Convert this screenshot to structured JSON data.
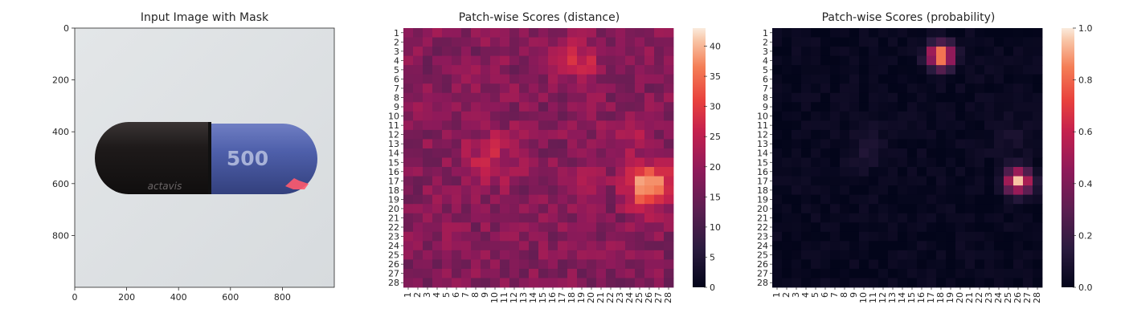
{
  "chart_data": [
    {
      "type": "image",
      "title": "Input Image with Mask",
      "x_ticks": [
        0,
        200,
        400,
        600,
        800
      ],
      "y_ticks": [
        0,
        200,
        400,
        600,
        800
      ],
      "xlim": [
        0,
        1000
      ],
      "ylim": [
        1000,
        0
      ],
      "image_content": {
        "background_color": "#dfe2e4",
        "capsule_left_color": "#1e1a1a",
        "capsule_right_color": "#4e5faa",
        "capsule_text": "500",
        "capsule_logo": "actavis",
        "mask_color": "#ff5a6e",
        "mask_region_center_xy": [
          880,
          595
        ]
      }
    },
    {
      "type": "heatmap",
      "title": "Patch-wise Scores (distance)",
      "grid_size": 28,
      "tick_labels": [
        "1",
        "2",
        "3",
        "4",
        "5",
        "6",
        "7",
        "8",
        "9",
        "10",
        "11",
        "12",
        "13",
        "14",
        "15",
        "16",
        "17",
        "18",
        "19",
        "20",
        "21",
        "22",
        "23",
        "24",
        "25",
        "26",
        "27",
        "28"
      ],
      "colormap": "rocket",
      "colorbar": {
        "min": 0,
        "max": 43,
        "ticks": [
          0,
          5,
          10,
          15,
          20,
          25,
          30,
          35,
          40
        ]
      },
      "baseline": 18,
      "noise_amplitude": 4,
      "hotspots": [
        {
          "row": 4,
          "col": 18.5,
          "peak": 10,
          "spread": 1.5
        },
        {
          "row": 14.5,
          "col": 9.5,
          "peak": 7,
          "spread": 2
        },
        {
          "row": 12.5,
          "col": 24,
          "peak": 5,
          "spread": 1.5
        },
        {
          "row": 17.5,
          "col": 26,
          "peak": 24,
          "spread": 1.6
        },
        {
          "row": 17.5,
          "col": 19,
          "peak": 4,
          "spread": 1.2
        }
      ]
    },
    {
      "type": "heatmap",
      "title": "Patch-wise Scores (probability)",
      "grid_size": 28,
      "tick_labels": [
        "1",
        "2",
        "3",
        "4",
        "5",
        "6",
        "7",
        "8",
        "9",
        "10",
        "11",
        "12",
        "13",
        "14",
        "15",
        "16",
        "17",
        "18",
        "19",
        "20",
        "21",
        "22",
        "23",
        "24",
        "25",
        "26",
        "27",
        "28"
      ],
      "colormap": "rocket",
      "colorbar": {
        "min": 0,
        "max": 1.0,
        "ticks": [
          0.0,
          0.2,
          0.4,
          0.6,
          0.8,
          1.0
        ],
        "tick_labels": [
          "0.0",
          "0.2",
          "0.4",
          "0.6",
          "0.8",
          "1.0"
        ]
      },
      "baseline": 0.02,
      "noise_amplitude": 0.03,
      "hotspots": [
        {
          "row": 3.5,
          "col": 18,
          "peak": 0.95,
          "spread": 0.9
        },
        {
          "row": 17,
          "col": 26,
          "peak": 0.9,
          "spread": 0.9
        },
        {
          "row": 13.5,
          "col": 10.5,
          "peak": 0.08,
          "spread": 1.5
        },
        {
          "row": 12.5,
          "col": 25,
          "peak": 0.06,
          "spread": 1.5
        }
      ]
    }
  ]
}
